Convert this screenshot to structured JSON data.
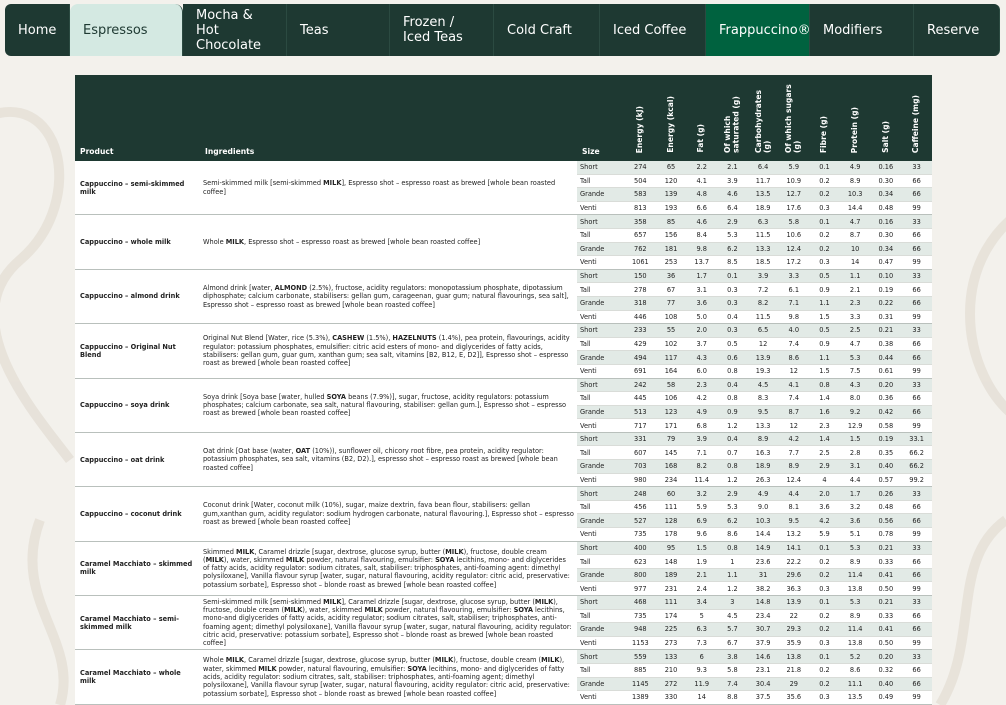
{
  "nav": {
    "tabs": [
      "Home",
      "Espressos",
      "Mocha & Hot Chocolate",
      "Teas",
      "Frozen / Iced Teas",
      "Cold Craft",
      "Iced Coffee",
      "Frappuccino®",
      "Modifiers",
      "Reserve"
    ],
    "active": 1
  },
  "table": {
    "headers": [
      "Product",
      "Ingredients",
      "Size",
      "Energy (kJ)",
      "Energy (kcal)",
      "Fat (g)",
      "Of which saturated (g)",
      "Carbohydrates (g)",
      "Of which sugars (g)",
      "Fibre (g)",
      "Protein (g)",
      "Salt (g)",
      "Caffeine (mg)"
    ],
    "products": [
      {
        "name": "Cappuccino – semi-skimmed milk",
        "ingredients": "Semi-skimmed milk [semi-skimmed MILK], Espresso shot – espresso roast as brewed [whole bean roasted coffee]",
        "rows": [
          {
            "size": "Short",
            "values": [
              "274",
              "65",
              "2.2",
              "2.1",
              "6.4",
              "5.9",
              "0.1",
              "4.9",
              "0.16",
              "33"
            ]
          },
          {
            "size": "Tall",
            "values": [
              "504",
              "120",
              "4.1",
              "3.9",
              "11.7",
              "10.9",
              "0.2",
              "8.9",
              "0.30",
              "66"
            ]
          },
          {
            "size": "Grande",
            "values": [
              "583",
              "139",
              "4.8",
              "4.6",
              "13.5",
              "12.7",
              "0.2",
              "10.3",
              "0.34",
              "66"
            ]
          },
          {
            "size": "Venti",
            "values": [
              "813",
              "193",
              "6.6",
              "6.4",
              "18.9",
              "17.6",
              "0.3",
              "14.4",
              "0.48",
              "99"
            ]
          }
        ]
      },
      {
        "name": "Cappuccino – whole milk",
        "ingredients": "Whole MILK, Espresso shot – espresso roast as brewed [whole bean roasted coffee]",
        "rows": [
          {
            "size": "Short",
            "values": [
              "358",
              "85",
              "4.6",
              "2.9",
              "6.3",
              "5.8",
              "0.1",
              "4.7",
              "0.16",
              "33"
            ]
          },
          {
            "size": "Tall",
            "values": [
              "657",
              "156",
              "8.4",
              "5.3",
              "11.5",
              "10.6",
              "0.2",
              "8.7",
              "0.30",
              "66"
            ]
          },
          {
            "size": "Grande",
            "values": [
              "762",
              "181",
              "9.8",
              "6.2",
              "13.3",
              "12.4",
              "0.2",
              "10",
              "0.34",
              "66"
            ]
          },
          {
            "size": "Venti",
            "values": [
              "1061",
              "253",
              "13.7",
              "8.5",
              "18.5",
              "17.2",
              "0.3",
              "14",
              "0.47",
              "99"
            ]
          }
        ]
      },
      {
        "name": "Cappuccino – almond drink",
        "ingredients": "Almond drink [water, ALMOND (2.5%), fructose, acidity regulators: monopotassium phosphate, dipotassium diphosphate; calcium carbonate, stabilisers: gellan gum, carageenan, guar gum; natural flavourings, sea salt], Espresso shot – espresso roast as brewed [whole bean roasted coffee]",
        "rows": [
          {
            "size": "Short",
            "values": [
              "150",
              "36",
              "1.7",
              "0.1",
              "3.9",
              "3.3",
              "0.5",
              "1.1",
              "0.10",
              "33"
            ]
          },
          {
            "size": "Tall",
            "values": [
              "278",
              "67",
              "3.1",
              "0.3",
              "7.2",
              "6.1",
              "0.9",
              "2.1",
              "0.19",
              "66"
            ]
          },
          {
            "size": "Grande",
            "values": [
              "318",
              "77",
              "3.6",
              "0.3",
              "8.2",
              "7.1",
              "1.1",
              "2.3",
              "0.22",
              "66"
            ]
          },
          {
            "size": "Venti",
            "values": [
              "446",
              "108",
              "5.0",
              "0.4",
              "11.5",
              "9.8",
              "1.5",
              "3.3",
              "0.31",
              "99"
            ]
          }
        ]
      },
      {
        "name": "Cappuccino – Original Nut Blend",
        "ingredients": "Original Nut Blend [Water, rice (5.3%), CASHEW (1.5%), HAZELNUTS (1.4%), pea protein, flavourings, acidity regulator: potassium phosphates, emulsifier: citric acid esters of mono- and diglycerides of fatty acids, stabilisers: gellan gum, guar gum, xanthan gum; sea salt, vitamins [B2, B12, E, D2]], Espresso shot – espresso roast as brewed [whole bean roasted coffee]",
        "rows": [
          {
            "size": "Short",
            "values": [
              "233",
              "55",
              "2.0",
              "0.3",
              "6.5",
              "4.0",
              "0.5",
              "2.5",
              "0.21",
              "33"
            ]
          },
          {
            "size": "Tall",
            "values": [
              "429",
              "102",
              "3.7",
              "0.5",
              "12",
              "7.4",
              "0.9",
              "4.7",
              "0.38",
              "66"
            ]
          },
          {
            "size": "Grande",
            "values": [
              "494",
              "117",
              "4.3",
              "0.6",
              "13.9",
              "8.6",
              "1.1",
              "5.3",
              "0.44",
              "66"
            ]
          },
          {
            "size": "Venti",
            "values": [
              "691",
              "164",
              "6.0",
              "0.8",
              "19.3",
              "12",
              "1.5",
              "7.5",
              "0.61",
              "99"
            ]
          }
        ]
      },
      {
        "name": "Cappuccino – soya drink",
        "ingredients": "Soya drink [Soya base [water, hulled SOYA beans (7.9%)], sugar, fructose, acidity regulators: potassium phosphates; calcium carbonate, sea salt, natural flavouring, stabiliser: gellan gum.], Espresso shot – espresso roast as brewed [whole bean roasted coffee]",
        "rows": [
          {
            "size": "Short",
            "values": [
              "242",
              "58",
              "2.3",
              "0.4",
              "4.5",
              "4.1",
              "0.8",
              "4.3",
              "0.20",
              "33"
            ]
          },
          {
            "size": "Tall",
            "values": [
              "445",
              "106",
              "4.2",
              "0.8",
              "8.3",
              "7.4",
              "1.4",
              "8.0",
              "0.36",
              "66"
            ]
          },
          {
            "size": "Grande",
            "values": [
              "513",
              "123",
              "4.9",
              "0.9",
              "9.5",
              "8.7",
              "1.6",
              "9.2",
              "0.42",
              "66"
            ]
          },
          {
            "size": "Venti",
            "values": [
              "717",
              "171",
              "6.8",
              "1.2",
              "13.3",
              "12",
              "2.3",
              "12.9",
              "0.58",
              "99"
            ]
          }
        ]
      },
      {
        "name": "Cappuccino – oat drink",
        "ingredients": "Oat drink [Oat base (water, OAT (10%)), sunflower oil, chicory root fibre, pea protein, acidity regulator: potassium phosphates, sea salt, vitamins (B2, D2).], espresso shot – espresso roast as brewed [whole bean roasted coffee]",
        "rows": [
          {
            "size": "Short",
            "values": [
              "331",
              "79",
              "3.9",
              "0.4",
              "8.9",
              "4.2",
              "1.4",
              "1.5",
              "0.19",
              "33.1"
            ]
          },
          {
            "size": "Tall",
            "values": [
              "607",
              "145",
              "7.1",
              "0.7",
              "16.3",
              "7.7",
              "2.5",
              "2.8",
              "0.35",
              "66.2"
            ]
          },
          {
            "size": "Grande",
            "values": [
              "703",
              "168",
              "8.2",
              "0.8",
              "18.9",
              "8.9",
              "2.9",
              "3.1",
              "0.40",
              "66.2"
            ]
          },
          {
            "size": "Venti",
            "values": [
              "980",
              "234",
              "11.4",
              "1.2",
              "26.3",
              "12.4",
              "4",
              "4.4",
              "0.57",
              "99.2"
            ]
          }
        ]
      },
      {
        "name": "Cappuccino – coconut drink",
        "ingredients": "Coconut drink [Water, coconut milk (10%), sugar, maize dextrin, fava bean flour, stabilisers: gellan gum,xanthan gum, acidity regulator: sodium hydrogen carbonate, natural flavouring.], Espresso shot – espresso roast as brewed [whole bean roasted coffee]",
        "rows": [
          {
            "size": "Short",
            "values": [
              "248",
              "60",
              "3.2",
              "2.9",
              "4.9",
              "4.4",
              "2.0",
              "1.7",
              "0.26",
              "33"
            ]
          },
          {
            "size": "Tall",
            "values": [
              "456",
              "111",
              "5.9",
              "5.3",
              "9.0",
              "8.1",
              "3.6",
              "3.2",
              "0.48",
              "66"
            ]
          },
          {
            "size": "Grande",
            "values": [
              "527",
              "128",
              "6.9",
              "6.2",
              "10.3",
              "9.5",
              "4.2",
              "3.6",
              "0.56",
              "66"
            ]
          },
          {
            "size": "Venti",
            "values": [
              "735",
              "178",
              "9.6",
              "8.6",
              "14.4",
              "13.2",
              "5.9",
              "5.1",
              "0.78",
              "99"
            ]
          }
        ]
      },
      {
        "name": "Caramel Macchiato – skimmed milk",
        "ingredients": "Skimmed MILK, Caramel drizzle [sugar, dextrose, glucose syrup, butter (MILK), fructose, double cream (MILK), water, skimmed MILK powder, natural flavouring, emulsifier: SOYA lecithins, mono- and diglycerides of fatty acids, acidity regulator: sodium citrates, salt, stabiliser: triphosphates, anti-foaming agent: dimethyl polysiloxane], Vanilla flavour syrup [water, sugar, natural flavouring, acidity regulator: citric acid, preservative: potassium sorbate], Espresso shot – blonde roast as brewed [whole bean roasted coffee]",
        "rows": [
          {
            "size": "Short",
            "values": [
              "400",
              "95",
              "1.5",
              "0.8",
              "14.9",
              "14.1",
              "0.1",
              "5.3",
              "0.21",
              "33"
            ]
          },
          {
            "size": "Tall",
            "values": [
              "623",
              "148",
              "1.9",
              "1",
              "23.6",
              "22.2",
              "0.2",
              "8.9",
              "0.33",
              "66"
            ]
          },
          {
            "size": "Grande",
            "values": [
              "800",
              "189",
              "2.1",
              "1.1",
              "31",
              "29.6",
              "0.2",
              "11.4",
              "0.41",
              "66"
            ]
          },
          {
            "size": "Venti",
            "values": [
              "977",
              "231",
              "2.4",
              "1.2",
              "38.2",
              "36.3",
              "0.3",
              "13.8",
              "0.50",
              "99"
            ]
          }
        ]
      },
      {
        "name": "Caramel Macchiato – semi-skimmed milk",
        "ingredients": "Semi-skimmed milk [semi-skimmed MILK], Caramel drizzle [sugar, dextrose, glucose syrup, butter (MILK), fructose, double cream (MILK), water, skimmed MILK powder, natural flavouring, emulsifier: SOYA lecithins, mono-and diglycerides of fatty acids, acidity regulator; sodium citrates, salt, stabiliser; triphosphates, anti-foaming agent; dimethyl polysiloxane], Vanilla flavour syrup [water, sugar, natural flavouring, acidity regulator: citric acid, preservative: potassium sorbate], Espresso shot – blonde roast as brewed [whole bean roasted coffee]",
        "rows": [
          {
            "size": "Short",
            "values": [
              "468",
              "111",
              "3.4",
              "3",
              "14.8",
              "13.9",
              "0.1",
              "5.3",
              "0.21",
              "33"
            ]
          },
          {
            "size": "Tall",
            "values": [
              "735",
              "174",
              "5",
              "4.5",
              "23.4",
              "22",
              "0.2",
              "8.9",
              "0.33",
              "66"
            ]
          },
          {
            "size": "Grande",
            "values": [
              "948",
              "225",
              "6.3",
              "5.7",
              "30.7",
              "29.3",
              "0.2",
              "11.4",
              "0.41",
              "66"
            ]
          },
          {
            "size": "Venti",
            "values": [
              "1153",
              "273",
              "7.3",
              "6.7",
              "37.9",
              "35.9",
              "0.3",
              "13.8",
              "0.50",
              "99"
            ]
          }
        ]
      },
      {
        "name": "Caramel Macchiato – whole milk",
        "ingredients": "Whole MILK, Caramel drizzle [sugar, dextrose, glucose syrup, butter (MILK), fructose, double cream (MILK), water, skimmed MILK powder, natural flavouring, emulsifier: SOYA lecithins, mono- and diglycerides of fatty acids, acidity regulator: sodium citrates, salt, stabiliser: triphosphates, anti-foaming agent; dimethyl polysiloxane], Vanilla flavour syrup [water, sugar, natural flavouring, acidity regulator: citric acid, preservative: potassium sorbate], Espresso shot – blonde roast as brewed [whole bean roasted coffee]",
        "rows": [
          {
            "size": "Short",
            "values": [
              "559",
              "133",
              "6",
              "3.8",
              "14.6",
              "13.8",
              "0.1",
              "5.2",
              "0.20",
              "33"
            ]
          },
          {
            "size": "Tall",
            "values": [
              "885",
              "210",
              "9.3",
              "5.8",
              "23.1",
              "21.8",
              "0.2",
              "8.6",
              "0.32",
              "66"
            ]
          },
          {
            "size": "Grande",
            "values": [
              "1145",
              "272",
              "11.9",
              "7.4",
              "30.4",
              "29",
              "0.2",
              "11.1",
              "0.40",
              "66"
            ]
          },
          {
            "size": "Venti",
            "values": [
              "1389",
              "330",
              "14",
              "8.8",
              "37.5",
              "35.6",
              "0.3",
              "13.5",
              "0.49",
              "99"
            ]
          }
        ]
      }
    ]
  }
}
